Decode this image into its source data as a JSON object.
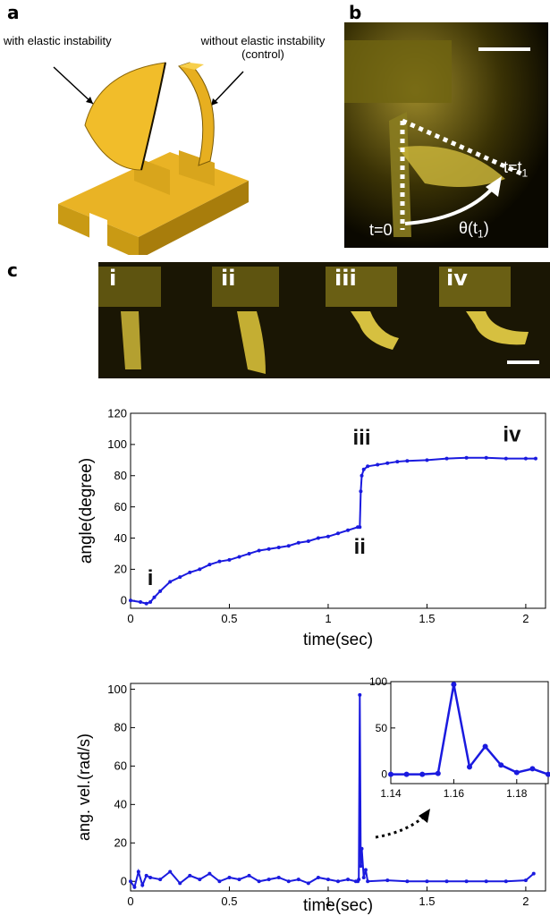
{
  "panels": {
    "a": "a",
    "b": "b",
    "c": "c"
  },
  "panel_a": {
    "label_left": "with elastic instability",
    "label_right_line1": "without elastic instability",
    "label_right_line2": "(control)"
  },
  "panel_b": {
    "t0": "t=0",
    "t1_main": "t=t",
    "t1_sub": "1",
    "theta_main": "θ(t",
    "theta_sub": "1",
    "theta_close": ")"
  },
  "frames": [
    "i",
    "ii",
    "iii",
    "iv"
  ],
  "chart_data": [
    {
      "type": "line",
      "xlabel": "time(sec)",
      "ylabel": "angle(degree)",
      "xlim": [
        0,
        2.1
      ],
      "ylim": [
        -5,
        120
      ],
      "xticks": [
        "0",
        "0.5",
        "1",
        "1.5",
        "2"
      ],
      "yticks": [
        "0",
        "20",
        "40",
        "60",
        "80",
        "100",
        "120"
      ],
      "color": "#1a1adf",
      "annotations": [
        {
          "text": "i",
          "x": 0.1,
          "y": 10
        },
        {
          "text": "ii",
          "x": 1.16,
          "y": 30
        },
        {
          "text": "iii",
          "x": 1.17,
          "y": 100
        },
        {
          "text": "iv",
          "x": 1.93,
          "y": 102
        }
      ],
      "x": [
        0,
        0.05,
        0.08,
        0.1,
        0.12,
        0.15,
        0.2,
        0.25,
        0.3,
        0.35,
        0.4,
        0.45,
        0.5,
        0.55,
        0.6,
        0.65,
        0.7,
        0.75,
        0.8,
        0.85,
        0.9,
        0.95,
        1.0,
        1.05,
        1.1,
        1.15,
        1.16,
        1.165,
        1.17,
        1.18,
        1.2,
        1.25,
        1.3,
        1.35,
        1.4,
        1.5,
        1.6,
        1.7,
        1.8,
        1.9,
        2.0,
        2.05
      ],
      "y": [
        0,
        -1,
        -2,
        -1,
        2,
        6,
        12,
        15,
        18,
        20,
        23,
        25,
        26,
        28,
        30,
        32,
        33,
        34,
        35,
        37,
        38,
        40,
        41,
        43,
        45,
        47,
        47,
        70,
        80,
        84,
        86,
        87,
        88,
        89,
        89.5,
        90,
        91,
        91.5,
        91.5,
        91,
        91,
        91
      ]
    },
    {
      "type": "line",
      "xlabel": "time(sec)",
      "ylabel": "ang. vel.(rad/s)",
      "xlim": [
        0,
        2.1
      ],
      "ylim": [
        -5,
        103
      ],
      "xticks": [
        "0",
        "0.5",
        "1",
        "1.5",
        "2"
      ],
      "yticks": [
        "0",
        "20",
        "40",
        "60",
        "80",
        "100"
      ],
      "color": "#1a1adf",
      "x": [
        0,
        0.02,
        0.04,
        0.06,
        0.08,
        0.1,
        0.15,
        0.2,
        0.25,
        0.3,
        0.35,
        0.4,
        0.45,
        0.5,
        0.55,
        0.6,
        0.65,
        0.7,
        0.75,
        0.8,
        0.85,
        0.9,
        0.95,
        1.0,
        1.05,
        1.1,
        1.14,
        1.15,
        1.155,
        1.16,
        1.165,
        1.17,
        1.18,
        1.19,
        1.2,
        1.3,
        1.4,
        1.5,
        1.6,
        1.7,
        1.8,
        1.9,
        2.0,
        2.04
      ],
      "y": [
        0,
        -3,
        5,
        -2,
        3,
        2,
        1,
        5,
        -1,
        3,
        1,
        4,
        0,
        2,
        1,
        3,
        0,
        1,
        2,
        0,
        1,
        -1,
        2,
        1,
        0,
        1,
        0,
        0,
        1,
        97,
        8,
        17,
        2,
        6,
        0,
        0.5,
        0,
        0,
        0,
        0,
        0,
        0,
        0.5,
        4
      ]
    },
    {
      "type": "line",
      "role": "inset",
      "xlim": [
        1.14,
        1.19
      ],
      "ylim": [
        -10,
        100
      ],
      "xticks": [
        "1.14",
        "1.16",
        "1.18"
      ],
      "yticks": [
        "0",
        "50",
        "100"
      ],
      "color": "#1a1adf",
      "x": [
        1.14,
        1.145,
        1.15,
        1.155,
        1.16,
        1.165,
        1.17,
        1.175,
        1.18,
        1.185,
        1.19
      ],
      "y": [
        0,
        0,
        0,
        1,
        97,
        8,
        30,
        10,
        2,
        6,
        0
      ]
    }
  ]
}
